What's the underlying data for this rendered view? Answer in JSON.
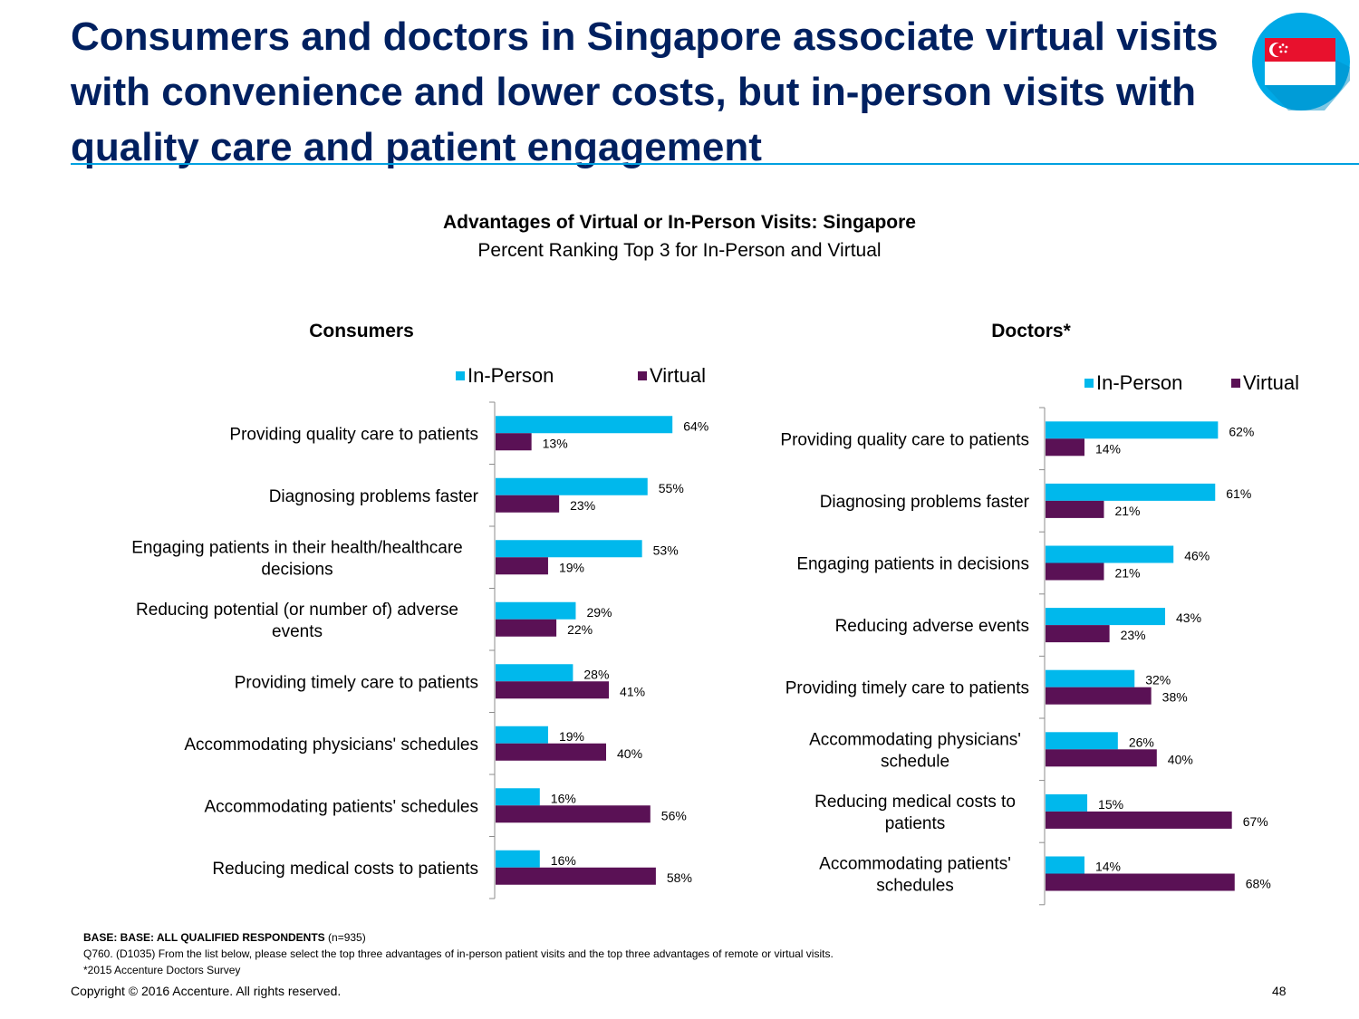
{
  "headline": "Consumers and doctors in Singapore associate virtual visits with convenience and lower costs, but in-person visits with quality care and patient engagement",
  "colors": {
    "in_person": "#00b8ec",
    "virtual": "#5a1155",
    "headline": "#002060",
    "rule": "#00a0e0",
    "flag_red": "#e8112d",
    "badge": "#00a9e6"
  },
  "chart_data": [
    {
      "type": "bar",
      "orientation": "horizontal",
      "title": "Advantages of Virtual or In-Person Visits: Singapore",
      "subtitle": "Percent Ranking Top 3 for In-Person and Virtual",
      "panel_title": "Consumers",
      "legend": [
        "In-Person",
        "Virtual"
      ],
      "legend_position": "top-right",
      "categories": [
        [
          "Providing quality care to patients"
        ],
        [
          "Diagnosing problems faster"
        ],
        [
          "Engaging patients in their health/healthcare",
          "decisions"
        ],
        [
          "Reducing potential (or number of) adverse",
          "events"
        ],
        [
          "Providing timely care to patients"
        ],
        [
          "Accommodating physicians' schedules"
        ],
        [
          "Accommodating patients' schedules"
        ],
        [
          "Reducing medical costs to patients"
        ]
      ],
      "series": [
        {
          "name": "In-Person",
          "values": [
            64,
            55,
            53,
            29,
            28,
            19,
            16,
            16
          ]
        },
        {
          "name": "Virtual",
          "values": [
            13,
            23,
            19,
            22,
            41,
            40,
            56,
            58
          ]
        }
      ],
      "value_suffix": "%",
      "xlim": [
        0,
        100
      ],
      "grid": false
    },
    {
      "type": "bar",
      "orientation": "horizontal",
      "panel_title": "Doctors*",
      "legend": [
        "In-Person",
        "Virtual"
      ],
      "legend_position": "top-right",
      "categories": [
        [
          "Providing quality care to patients"
        ],
        [
          "Diagnosing problems faster"
        ],
        [
          "Engaging patients in decisions"
        ],
        [
          "Reducing adverse events"
        ],
        [
          "Providing timely care to patients"
        ],
        [
          "Accommodating physicians'",
          "schedule"
        ],
        [
          "Reducing medical costs to",
          "patients"
        ],
        [
          "Accommodating patients'",
          "schedules"
        ]
      ],
      "series": [
        {
          "name": "In-Person",
          "values": [
            62,
            61,
            46,
            43,
            32,
            26,
            15,
            14
          ]
        },
        {
          "name": "Virtual",
          "values": [
            14,
            21,
            21,
            23,
            38,
            40,
            67,
            68
          ]
        }
      ],
      "value_suffix": "%",
      "xlim": [
        0,
        100
      ],
      "grid": false
    }
  ],
  "footnotes": {
    "base_bold": "BASE: BASE: ALL QUALIFIED RESPONDENTS",
    "base_n": " (n=935)",
    "question": "Q760. (D1035)  From the list below, please select the top three advantages of in-person patient visits and the top three advantages of remote or virtual visits.",
    "survey": "*2015 Accenture Doctors Survey"
  },
  "copyright": "Copyright © 2016 Accenture. All rights reserved.",
  "page_number": "48"
}
